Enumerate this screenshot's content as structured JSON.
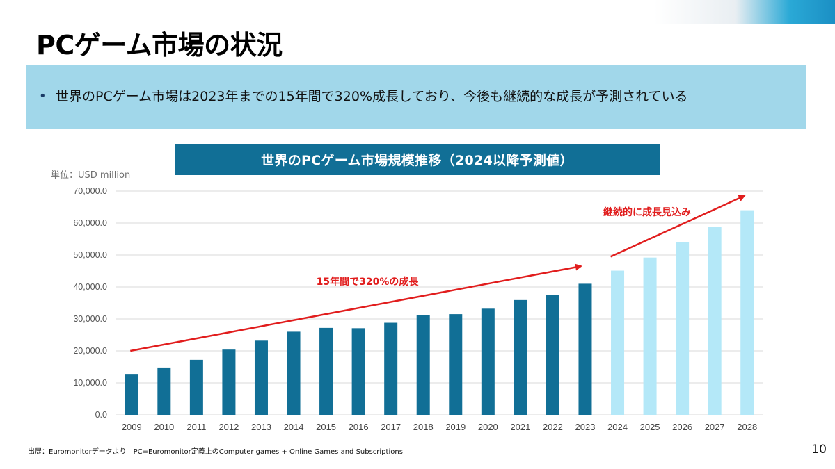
{
  "page": {
    "title": "PCゲーム市場の状況",
    "summary": "世界のPCゲーム市場は2023年までの15年間で320%成長しており、今後も継続的な成長が予測されている",
    "bullet": "•",
    "source": "出展：Euromonitorデータより　PC=Euromonitor定義上のComputer games + Online Games and Subscriptions",
    "page_number": "10"
  },
  "chart_data": {
    "type": "bar",
    "title": "世界のPCゲーム市場規模推移（2024以降予測値）",
    "unit_label": "単位：USD million",
    "categories": [
      "2009",
      "2010",
      "2011",
      "2012",
      "2013",
      "2014",
      "2015",
      "2016",
      "2017",
      "2018",
      "2019",
      "2020",
      "2021",
      "2022",
      "2023",
      "2024",
      "2025",
      "2026",
      "2027",
      "2028"
    ],
    "values": [
      12800,
      14800,
      17200,
      20400,
      23200,
      26000,
      27200,
      27100,
      28800,
      31100,
      31500,
      33200,
      35900,
      37400,
      41000,
      45100,
      49200,
      54000,
      58800,
      64000
    ],
    "forecast_from_index": 15,
    "colors": {
      "actual": "#116f96",
      "forecast": "#b4e8f8",
      "arrow": "#e11d1d",
      "grid": "#d9d9d9"
    },
    "ylim": [
      0,
      70000
    ],
    "y_ticks": [
      0,
      10000,
      20000,
      30000,
      40000,
      50000,
      60000,
      70000
    ],
    "y_tick_labels": [
      "0.0",
      "10,000.0",
      "20,000.0",
      "30,000.0",
      "40,000.0",
      "50,000.0",
      "60,000.0",
      "70,000.0"
    ],
    "grid": true,
    "annotations": [
      {
        "text": "15年間で320%の成長",
        "from": [
          "2009",
          20000
        ],
        "to": [
          "2023",
          46500
        ]
      },
      {
        "text": "継続的に成長見込み",
        "from": [
          "2024",
          49500
        ],
        "to": [
          "2028",
          68500
        ]
      }
    ]
  }
}
